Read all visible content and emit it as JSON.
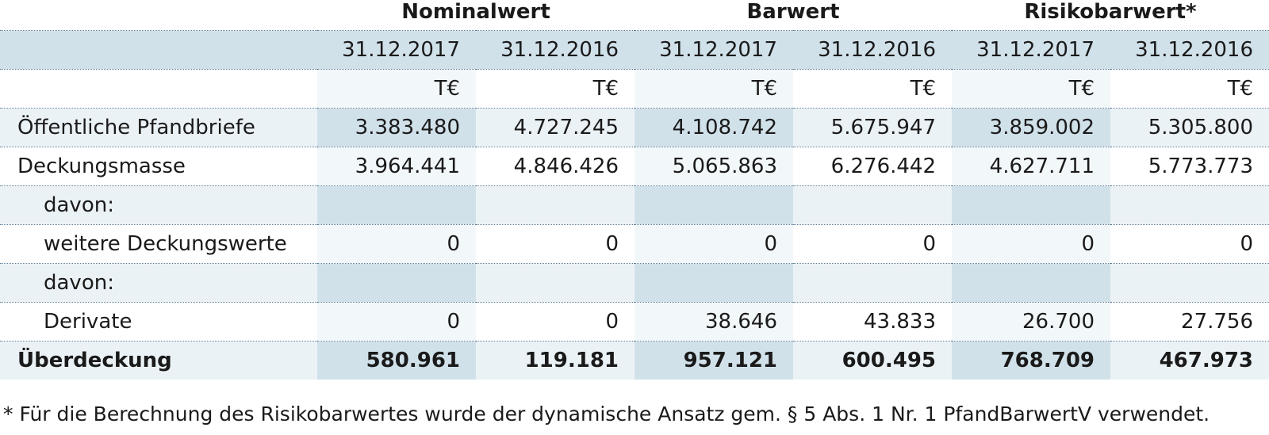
{
  "columns": {
    "groups": [
      "Nominalwert",
      "Barwert",
      "Risikobarwert*"
    ],
    "dates": [
      "31.12.2017",
      "31.12.2016",
      "31.12.2017",
      "31.12.2016",
      "31.12.2017",
      "31.12.2016"
    ],
    "unit": "T€"
  },
  "rows": [
    {
      "label": "Öffentliche Pfandbriefe",
      "values": [
        "3.383.480",
        "4.727.245",
        "4.108.742",
        "5.675.947",
        "3.859.002",
        "5.305.800"
      ]
    },
    {
      "label": "Deckungsmasse",
      "values": [
        "3.964.441",
        "4.846.426",
        "5.065.863",
        "6.276.442",
        "4.627.711",
        "5.773.773"
      ]
    },
    {
      "label": "davon:",
      "values": [
        "",
        "",
        "",
        "",
        "",
        ""
      ]
    },
    {
      "label": "weitere Deckungswerte",
      "values": [
        "0",
        "0",
        "0",
        "0",
        "0",
        "0"
      ]
    },
    {
      "label": "davon:",
      "values": [
        "",
        "",
        "",
        "",
        "",
        ""
      ]
    },
    {
      "label": "Derivate",
      "values": [
        "0",
        "0",
        "38.646",
        "43.833",
        "26.700",
        "27.756"
      ]
    },
    {
      "label": "Überdeckung",
      "values": [
        "580.961",
        "119.181",
        "957.121",
        "600.495",
        "768.709",
        "467.973"
      ]
    }
  ],
  "footnote": "* Für die Berechnung des Risikobarwertes wurde der dynamische Ansatz gem. § 5 Abs. 1 Nr. 1 PfandBarwertV verwendet."
}
